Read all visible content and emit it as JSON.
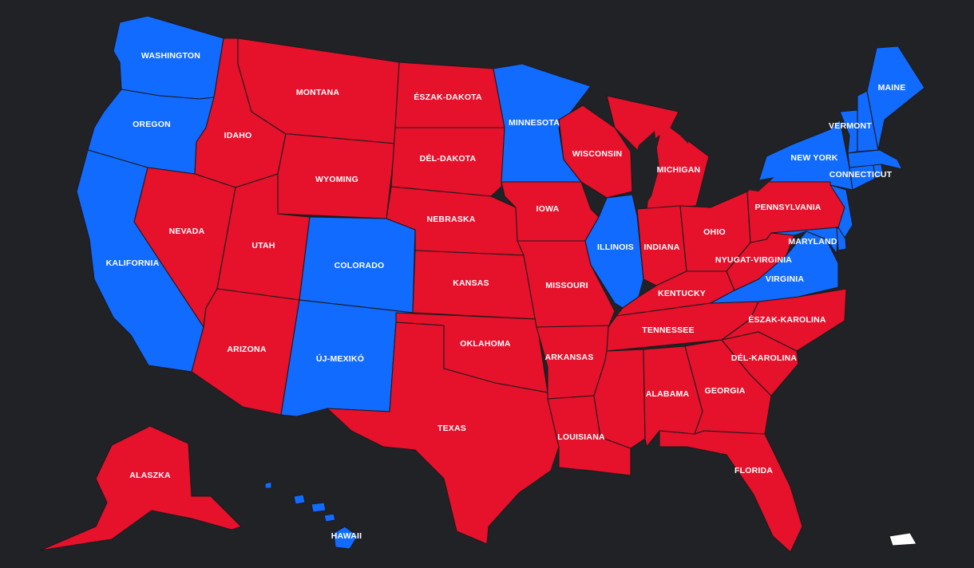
{
  "colors": {
    "background": "#212226",
    "red": "#e6112b",
    "blue": "#126bff",
    "territory": "#ffffff"
  },
  "states": [
    {
      "id": "WA",
      "label": "WASHINGTON",
      "party": "blue"
    },
    {
      "id": "OR",
      "label": "OREGON",
      "party": "blue"
    },
    {
      "id": "CA",
      "label": "KALIFORNIA",
      "party": "blue"
    },
    {
      "id": "ID",
      "label": "IDAHO",
      "party": "red"
    },
    {
      "id": "NV",
      "label": "NEVADA",
      "party": "red"
    },
    {
      "id": "MT",
      "label": "MONTANA",
      "party": "red"
    },
    {
      "id": "WY",
      "label": "WYOMING",
      "party": "red"
    },
    {
      "id": "UT",
      "label": "UTAH",
      "party": "red"
    },
    {
      "id": "AZ",
      "label": "ARIZONA",
      "party": "red"
    },
    {
      "id": "CO",
      "label": "COLORADO",
      "party": "blue"
    },
    {
      "id": "NM",
      "label": "ÚJ-MEXIKÓ",
      "party": "blue"
    },
    {
      "id": "ND",
      "label": "ÉSZAK-DAKOTA",
      "party": "red"
    },
    {
      "id": "SD",
      "label": "DÉL-DAKOTA",
      "party": "red"
    },
    {
      "id": "NE",
      "label": "NEBRASKA",
      "party": "red"
    },
    {
      "id": "KS",
      "label": "KANSAS",
      "party": "red"
    },
    {
      "id": "OK",
      "label": "OKLAHOMA",
      "party": "red"
    },
    {
      "id": "TX",
      "label": "TEXAS",
      "party": "red"
    },
    {
      "id": "MN",
      "label": "MINNESOTA",
      "party": "blue"
    },
    {
      "id": "IA",
      "label": "IOWA",
      "party": "red"
    },
    {
      "id": "MO",
      "label": "MISSOURI",
      "party": "red"
    },
    {
      "id": "AR",
      "label": "ARKANSAS",
      "party": "red"
    },
    {
      "id": "LA",
      "label": "LOUISIANA",
      "party": "red"
    },
    {
      "id": "WI",
      "label": "WISCONSIN",
      "party": "red"
    },
    {
      "id": "IL",
      "label": "ILLINOIS",
      "party": "blue"
    },
    {
      "id": "MI",
      "label": "MICHIGAN",
      "party": "red"
    },
    {
      "id": "IN",
      "label": "INDIANA",
      "party": "red"
    },
    {
      "id": "OH",
      "label": "OHIO",
      "party": "red"
    },
    {
      "id": "KY",
      "label": "KENTUCKY",
      "party": "red"
    },
    {
      "id": "TN",
      "label": "TENNESSEE",
      "party": "red"
    },
    {
      "id": "MS",
      "label": "",
      "party": "red"
    },
    {
      "id": "AL",
      "label": "ALABAMA",
      "party": "red"
    },
    {
      "id": "GA",
      "label": "GEORGIA",
      "party": "red"
    },
    {
      "id": "FL",
      "label": "FLORIDA",
      "party": "red"
    },
    {
      "id": "SC",
      "label": "DÉL-KAROLINA",
      "party": "red"
    },
    {
      "id": "NC",
      "label": "ÉSZAK-KAROLINA",
      "party": "red"
    },
    {
      "id": "VA",
      "label": "VIRGINIA",
      "party": "blue"
    },
    {
      "id": "WV",
      "label": "NYUGAT-VIRGINIA",
      "party": "red"
    },
    {
      "id": "PA",
      "label": "PENNSYLVANIA",
      "party": "red"
    },
    {
      "id": "MD",
      "label": "MARYLAND",
      "party": "blue"
    },
    {
      "id": "DE",
      "label": "",
      "party": "blue"
    },
    {
      "id": "NJ",
      "label": "",
      "party": "blue"
    },
    {
      "id": "NY",
      "label": "NEW YORK",
      "party": "blue"
    },
    {
      "id": "CT",
      "label": "CONNECTICUT",
      "party": "blue"
    },
    {
      "id": "RI",
      "label": "",
      "party": "blue"
    },
    {
      "id": "MA",
      "label": "",
      "party": "blue"
    },
    {
      "id": "VT",
      "label": "VERMONT",
      "party": "blue"
    },
    {
      "id": "NH",
      "label": "",
      "party": "blue"
    },
    {
      "id": "ME",
      "label": "MAINE",
      "party": "blue"
    },
    {
      "id": "AK",
      "label": "ALASZKA",
      "party": "red"
    },
    {
      "id": "HI",
      "label": "HAWAII",
      "party": "blue"
    },
    {
      "id": "PR",
      "label": "",
      "party": "territory"
    }
  ]
}
